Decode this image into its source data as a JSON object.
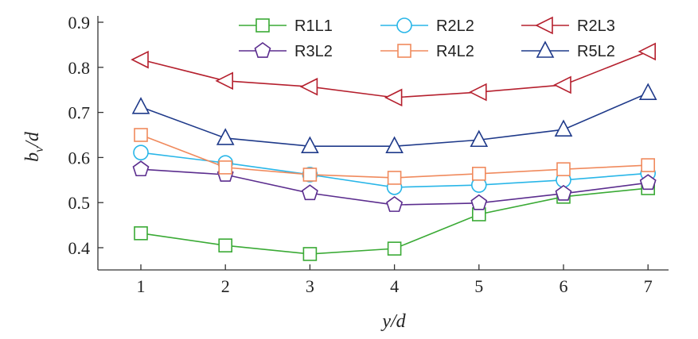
{
  "chart_data": {
    "type": "line",
    "title": "",
    "xlabel": "y/d",
    "ylabel": "b_v/d",
    "ylabel_main": "b",
    "ylabel_sub": "v",
    "ylabel_tail": "/d",
    "x": [
      1,
      2,
      3,
      4,
      5,
      6,
      7
    ],
    "xticks": [
      "1",
      "2",
      "3",
      "4",
      "5",
      "6",
      "7"
    ],
    "yticks": [
      "0.4",
      "0.5",
      "0.6",
      "0.7",
      "0.8",
      "0.9"
    ],
    "xlim": [
      0.5,
      7.2
    ],
    "ylim": [
      0.35,
      0.9
    ],
    "grid": false,
    "legend_position": "top",
    "series": [
      {
        "name": "R1L1",
        "color": "#3aaa35",
        "marker": "square",
        "values": [
          0.432,
          0.405,
          0.386,
          0.398,
          0.474,
          0.513,
          0.532
        ]
      },
      {
        "name": "R2L2",
        "color": "#29b6e8",
        "marker": "circle",
        "values": [
          0.611,
          0.588,
          0.562,
          0.534,
          0.539,
          0.55,
          0.565
        ]
      },
      {
        "name": "R2L3",
        "color": "#b5202e",
        "marker": "triangle-left",
        "values": [
          0.817,
          0.77,
          0.757,
          0.733,
          0.745,
          0.761,
          0.835
        ]
      },
      {
        "name": "R3L2",
        "color": "#5b2d8e",
        "marker": "pentagon",
        "values": [
          0.574,
          0.562,
          0.521,
          0.495,
          0.499,
          0.52,
          0.544
        ]
      },
      {
        "name": "R4L2",
        "color": "#f08a5d",
        "marker": "square",
        "values": [
          0.65,
          0.578,
          0.562,
          0.555,
          0.564,
          0.574,
          0.583
        ]
      },
      {
        "name": "R5L2",
        "color": "#1f3a8a",
        "marker": "triangle-up",
        "values": [
          0.712,
          0.643,
          0.625,
          0.625,
          0.639,
          0.662,
          0.743
        ]
      }
    ]
  }
}
